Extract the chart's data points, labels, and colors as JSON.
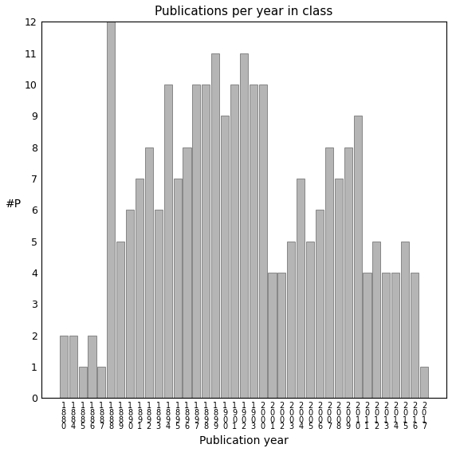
{
  "years": [
    "1880",
    "1884",
    "1885",
    "1886",
    "1887",
    "1888",
    "1889",
    "1890",
    "1891",
    "1892",
    "1893",
    "1894",
    "1895",
    "1896",
    "1897",
    "1898",
    "1899",
    "1900",
    "1901",
    "1902",
    "1903",
    "2000",
    "2001",
    "2002",
    "2003",
    "2004",
    "2005",
    "2006",
    "2007",
    "2008",
    "2009",
    "2010",
    "2011",
    "2012",
    "2013",
    "2014",
    "2015",
    "2016",
    "2017"
  ],
  "values": [
    2,
    2,
    1,
    2,
    1,
    12,
    5,
    6,
    7,
    8,
    6,
    10,
    7,
    8,
    10,
    10,
    11,
    9,
    10,
    11,
    10,
    10,
    4,
    4,
    5,
    7,
    5,
    6,
    8,
    7,
    8,
    9,
    4,
    5,
    4,
    4,
    5,
    4,
    1
  ],
  "title": "Publications per year in class",
  "xlabel": "Publication year",
  "ylabel": "#P",
  "bar_color": "#b5b5b5",
  "bar_edge_color": "#666666",
  "ylim": [
    0,
    12
  ],
  "yticks": [
    0,
    1,
    2,
    3,
    4,
    5,
    6,
    7,
    8,
    9,
    10,
    11,
    12
  ],
  "background_color": "#ffffff"
}
